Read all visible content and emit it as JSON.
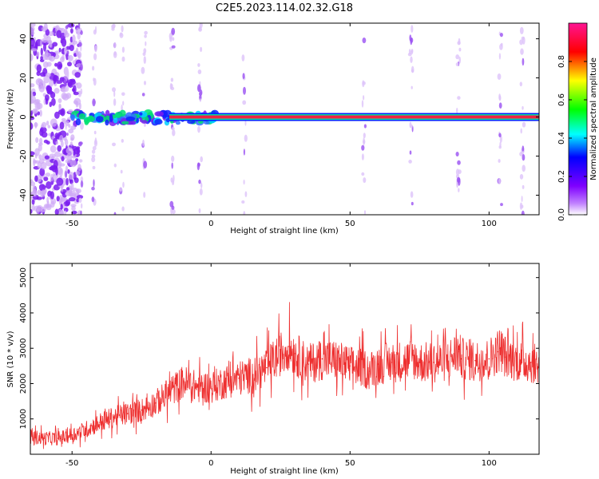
{
  "title": "C2E5.2023.114.02.32.G18",
  "chart_data": [
    {
      "type": "heatmap",
      "xlabel": "Height of straight line (km)",
      "ylabel": "Frequency (Hz)",
      "xlim": [
        -65,
        118
      ],
      "ylim": [
        -50,
        48
      ],
      "x_ticks": [
        -50,
        0,
        50,
        100
      ],
      "y_ticks": [
        -40,
        -20,
        0,
        20,
        40
      ],
      "colorbar": {
        "label": "Normalized spectral amplitude",
        "range": [
          0.0,
          1.0
        ],
        "ticks": [
          0.0,
          0.2,
          0.4,
          0.6,
          0.8
        ],
        "colormap": [
          "#ffffff",
          "#7f00ff",
          "#0000ff",
          "#00ffff",
          "#00ff00",
          "#ffff00",
          "#ff0000",
          "#ff00aa"
        ]
      },
      "ridge": {
        "frequency": 0,
        "strong_from_height": -15,
        "strong_to_height": 118,
        "normalized_amplitude_strong": 0.95,
        "noisy_segment_from": -50,
        "noisy_segment_to": -15
      },
      "noise_bands_heights": [
        -52,
        -47,
        -42,
        -35,
        -32,
        -24,
        -14,
        -4,
        12,
        55,
        72,
        89,
        104,
        112
      ]
    },
    {
      "type": "line",
      "xlabel": "Height of straight line (km)",
      "ylabel": "SNR (10 * v/v)",
      "xlim": [
        -65,
        118
      ],
      "ylim": [
        0,
        5400
      ],
      "x_ticks": [
        -50,
        0,
        50,
        100
      ],
      "y_ticks": [
        1000,
        2000,
        3000,
        4000,
        5000
      ],
      "series": [
        {
          "color": "#ee3030",
          "x": [
            -65,
            -60,
            -55,
            -50,
            -45,
            -40,
            -35,
            -30,
            -25,
            -20,
            -15,
            -10,
            -5,
            0,
            5,
            10,
            15,
            20,
            25,
            28,
            30,
            35,
            40,
            45,
            50,
            55,
            57,
            60,
            65,
            70,
            73,
            75,
            80,
            85,
            89,
            90,
            95,
            100,
            103,
            104,
            106,
            110,
            115,
            118
          ],
          "y": [
            500,
            450,
            450,
            550,
            700,
            900,
            1050,
            1150,
            1250,
            1450,
            1750,
            2050,
            1900,
            1900,
            2050,
            2150,
            2250,
            2450,
            2850,
            3050,
            2850,
            2550,
            2700,
            2650,
            2500,
            2450,
            2350,
            2550,
            2600,
            2650,
            2700,
            2600,
            2600,
            2650,
            2900,
            2700,
            2650,
            2700,
            2900,
            3000,
            2750,
            2650,
            2600,
            2500
          ]
        }
      ]
    }
  ]
}
